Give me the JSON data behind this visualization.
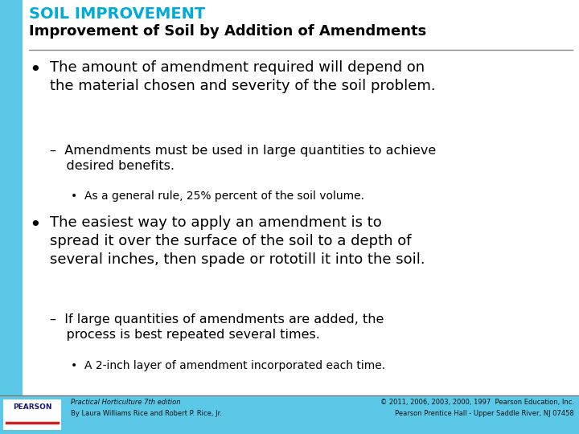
{
  "title_top": "SOIL IMPROVEMENT",
  "title_top_color": "#00AADD",
  "title_sub": "Improvement of Soil by Addition of Amendments",
  "title_sub_color": "#000000",
  "accent_bar_color": "#5BC8E8",
  "bg_color": "#FFFFFF",
  "footer_bar_color": "#5BC8E8",
  "footer_left1": "Practical Horticulture 7th edition",
  "footer_left2": "By Laura Williams Rice and Robert P. Rice, Jr.",
  "footer_right1": "© 2011, 2006, 2003, 2000, 1997  Pearson Education, Inc.",
  "footer_right2": "Pearson Prentice Hall - Upper Saddle River, NJ 07458",
  "snowflake_color": "#5BC8E8",
  "divider_color": "#888888",
  "text_color": "#000000"
}
